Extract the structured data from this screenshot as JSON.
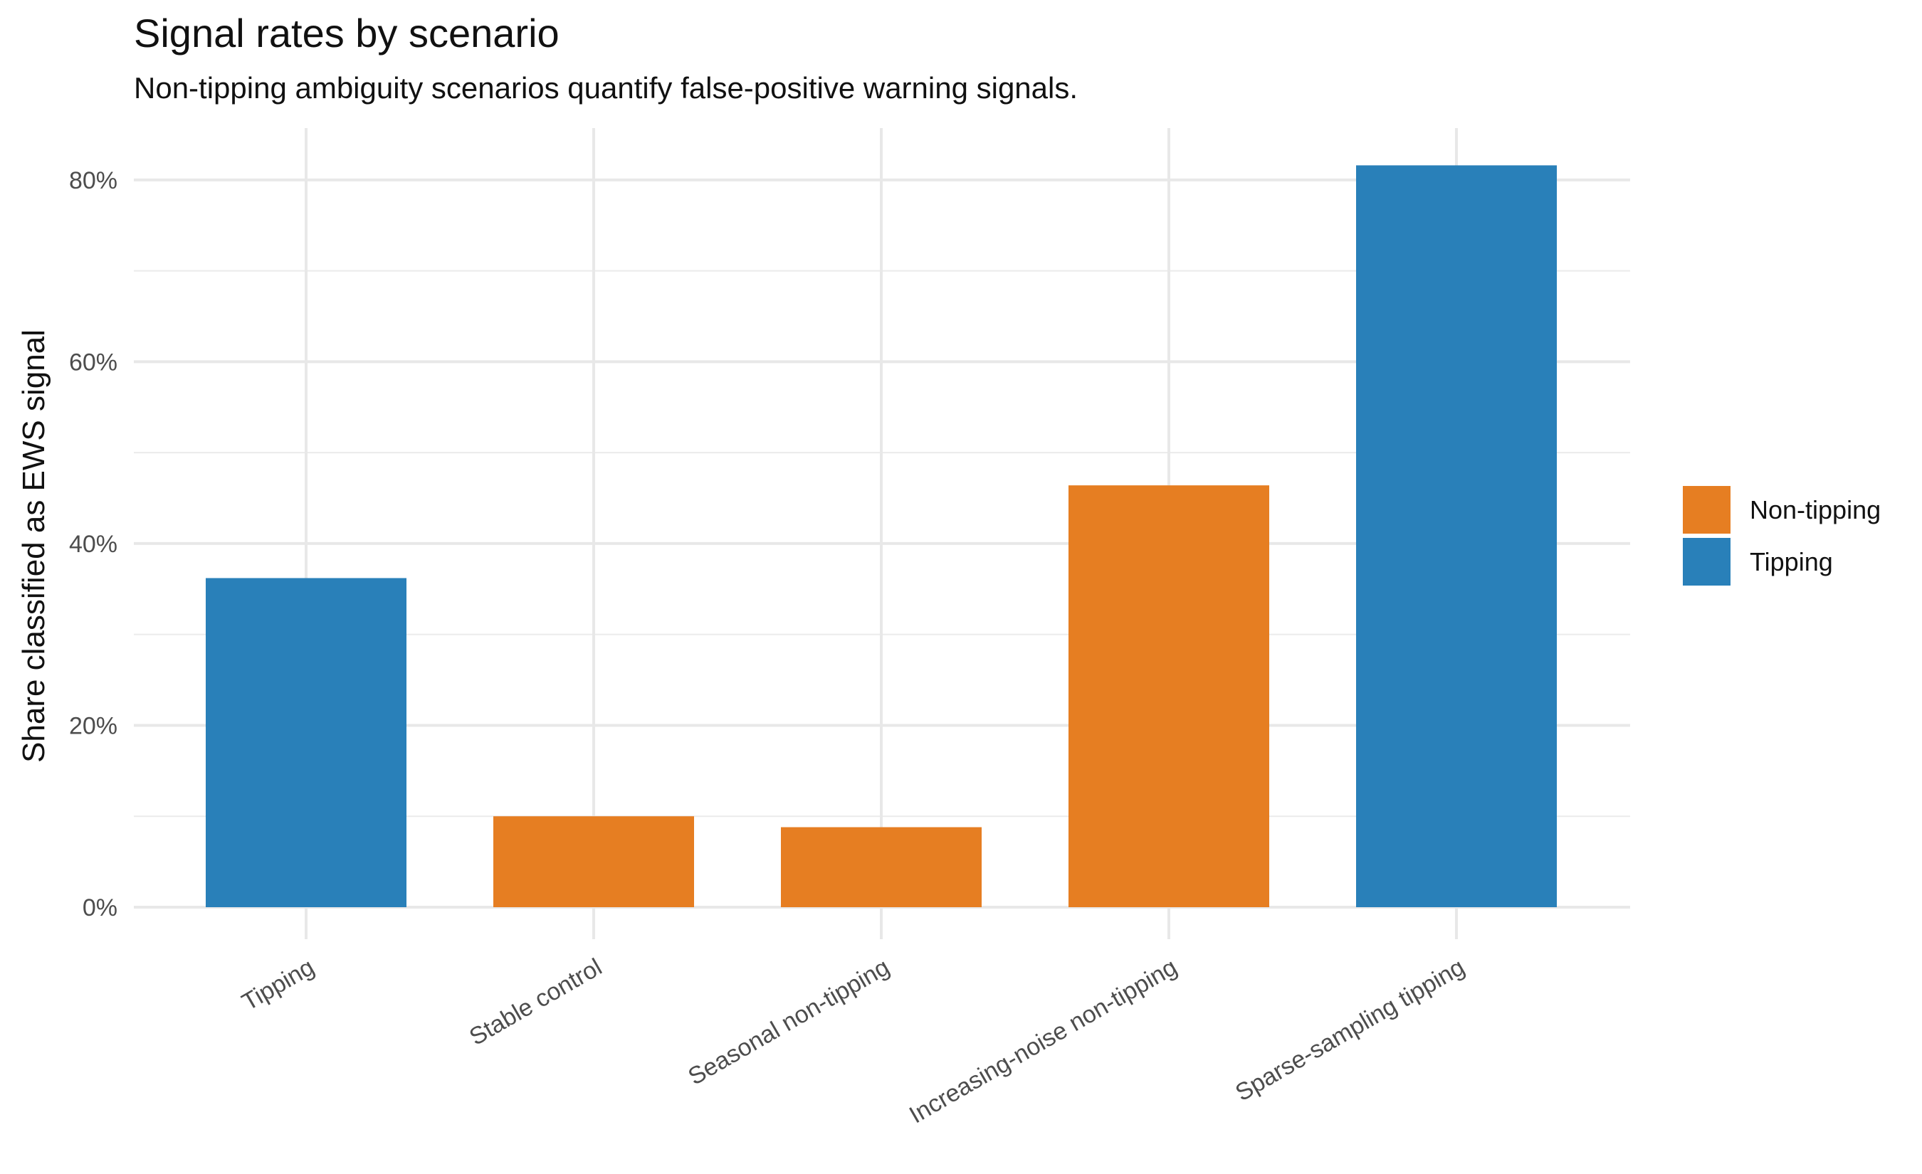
{
  "chart_data": {
    "type": "bar",
    "title": "Signal rates by scenario",
    "subtitle": "Non-tipping ambiguity scenarios quantify false-positive warning signals.",
    "xlabel": "",
    "ylabel": "Share classified as EWS signal",
    "categories": [
      "Tipping",
      "Stable control",
      "Seasonal non-tipping",
      "Increasing-noise non-tipping",
      "Sparse-sampling tipping"
    ],
    "values": [
      36.2,
      10.0,
      8.8,
      46.4,
      81.6
    ],
    "groups": [
      "Tipping",
      "Non-tipping",
      "Non-tipping",
      "Non-tipping",
      "Tipping"
    ],
    "value_format": "percent",
    "ylim": [
      0,
      85.7
    ],
    "y_ticks": [
      0,
      20,
      40,
      60,
      80
    ],
    "y_tick_labels": [
      "0%",
      "20%",
      "40%",
      "60%",
      "80%"
    ],
    "grid": true,
    "legend": {
      "position": "right",
      "entries": [
        {
          "label": "Non-tipping",
          "color": "#E67E22"
        },
        {
          "label": "Tipping",
          "color": "#2980B9"
        }
      ]
    },
    "colors": {
      "Non-tipping": "#E67E22",
      "Tipping": "#2980B9"
    }
  }
}
